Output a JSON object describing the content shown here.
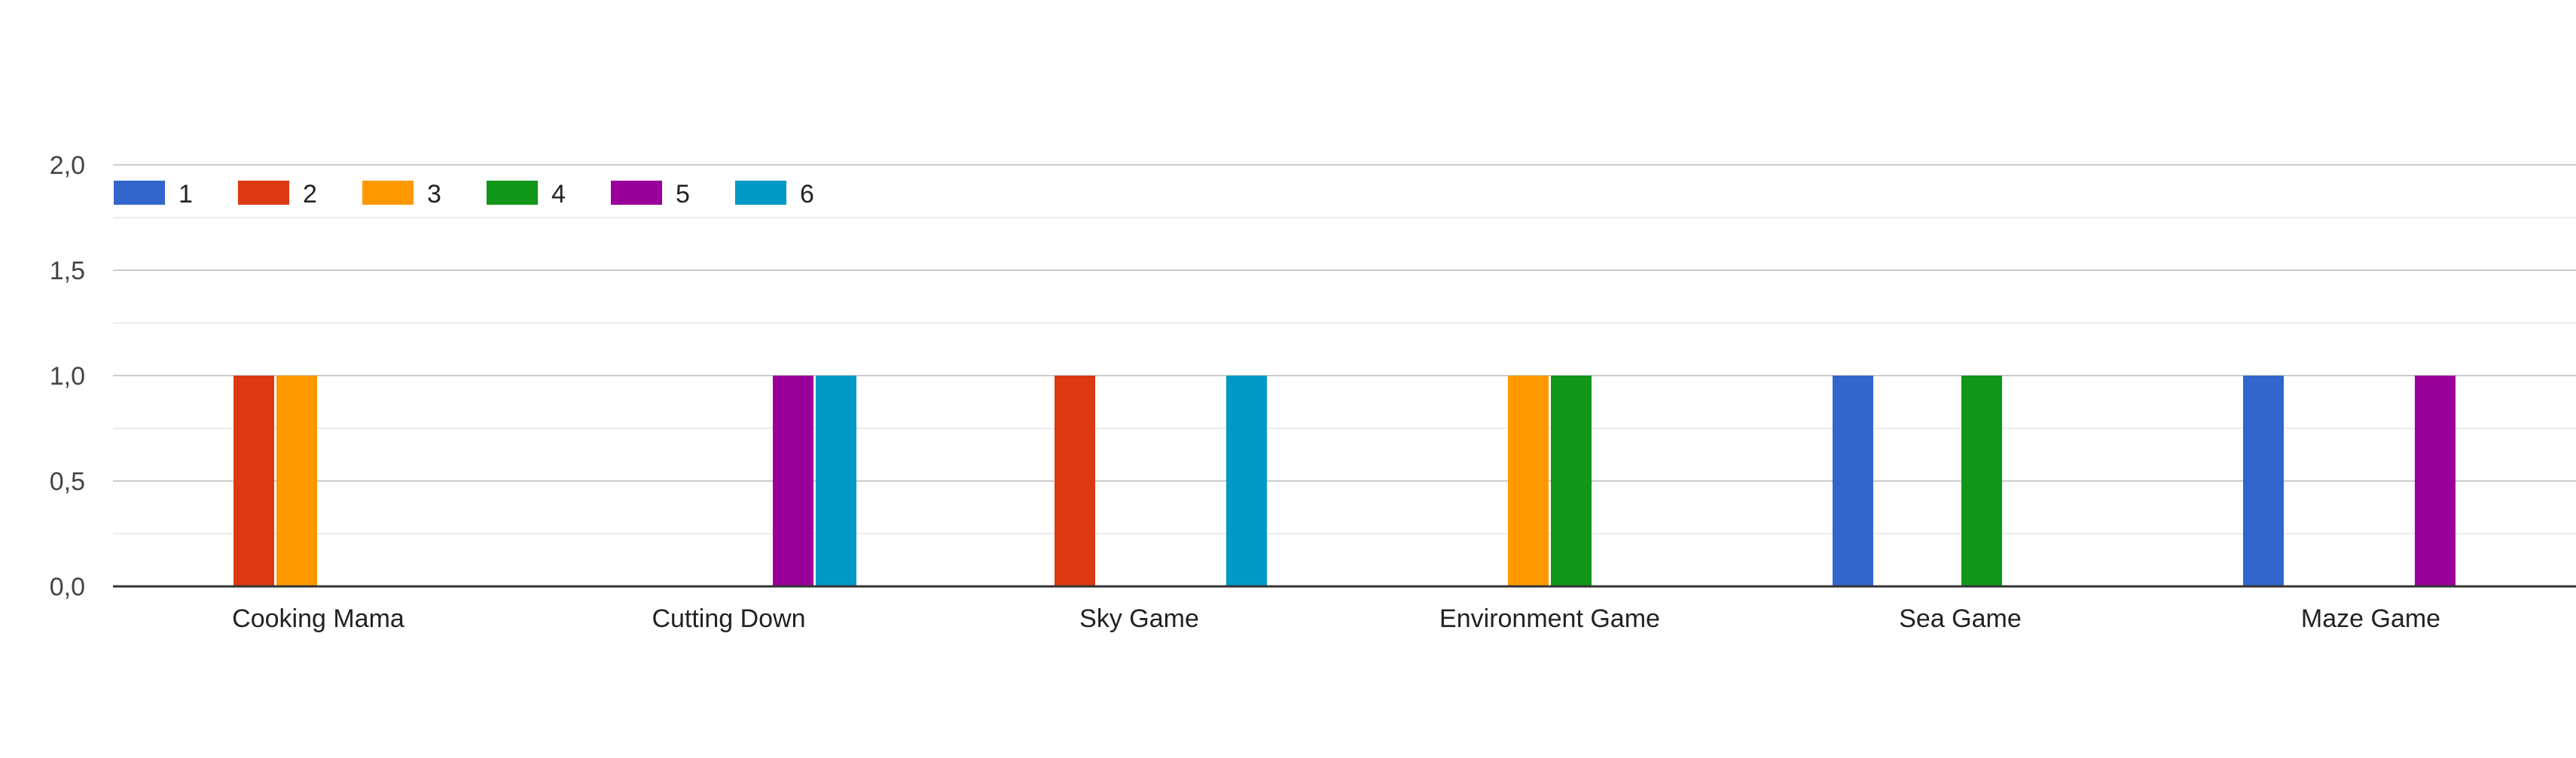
{
  "chart_data": {
    "type": "bar",
    "categories": [
      "Cooking Mama",
      "Cutting Down",
      "Sky Game",
      "Environment Game",
      "Sea Game",
      "Maze Game"
    ],
    "series": [
      {
        "name": "1",
        "color": "#3366cc",
        "values": [
          0,
          0,
          0,
          0,
          1,
          1
        ]
      },
      {
        "name": "2",
        "color": "#dc3912",
        "values": [
          1,
          0,
          1,
          0,
          0,
          0
        ]
      },
      {
        "name": "3",
        "color": "#ff9900",
        "values": [
          1,
          0,
          0,
          1,
          0,
          0
        ]
      },
      {
        "name": "4",
        "color": "#109618",
        "values": [
          0,
          0,
          0,
          1,
          1,
          0
        ]
      },
      {
        "name": "5",
        "color": "#990099",
        "values": [
          0,
          1,
          0,
          0,
          0,
          1
        ]
      },
      {
        "name": "6",
        "color": "#0099c6",
        "values": [
          0,
          1,
          1,
          0,
          0,
          0
        ]
      }
    ],
    "y_ticks": [
      "0,0",
      "0,5",
      "1,0",
      "1,5",
      "2,0"
    ],
    "ylim": [
      0,
      2
    ],
    "grid": true,
    "minor_grid": true,
    "legend_position": "top-left",
    "xlabel": "",
    "ylabel": "",
    "title": ""
  }
}
